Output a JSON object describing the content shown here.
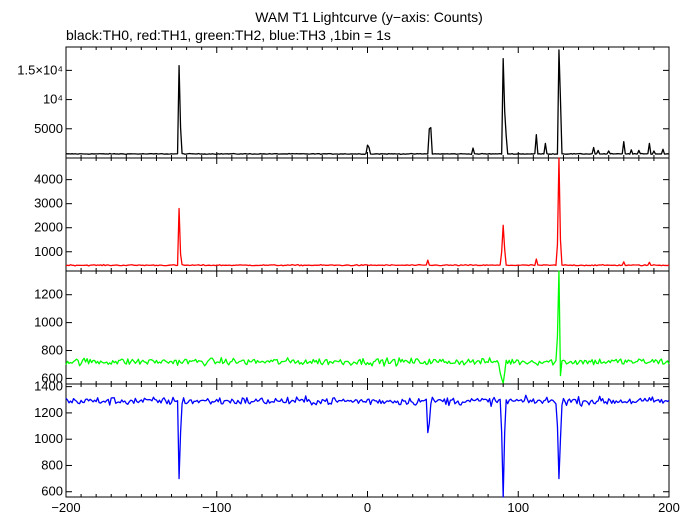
{
  "chart_data": {
    "type": "line",
    "title": "WAM T1 Lightcurve (y−axis: Counts)",
    "subtitle": "black:TH0, red:TH1, green:TH2, blue:TH3 ,1bin = 1s",
    "x_range": [
      -200,
      200
    ],
    "x_ticks": [
      -200,
      -100,
      0,
      100,
      200
    ],
    "x_tick_labels": [
      "−200",
      "−100",
      "0",
      "100",
      "200"
    ],
    "grid": false,
    "panels": [
      {
        "series": "TH0",
        "color": "#000000",
        "ylim": [
          0,
          19000
        ],
        "y_ticks": [
          5000,
          10000,
          15000
        ],
        "y_tick_labels": [
          "5000",
          "10⁴",
          "1.5×10⁴"
        ],
        "baseline": 700,
        "noise": 60,
        "features": [
          {
            "x": -125,
            "value": 15800
          },
          {
            "x": -124,
            "value": 5200
          },
          {
            "x": 0,
            "value": 2200
          },
          {
            "x": 1,
            "value": 1800
          },
          {
            "x": 41,
            "value": 5000
          },
          {
            "x": 42,
            "value": 5200
          },
          {
            "x": 70,
            "value": 1700
          },
          {
            "x": 90,
            "value": 17000
          },
          {
            "x": 91,
            "value": 8000
          },
          {
            "x": 92,
            "value": 3800
          },
          {
            "x": 112,
            "value": 4000
          },
          {
            "x": 118,
            "value": 2500
          },
          {
            "x": 127,
            "value": 18500
          },
          {
            "x": 128,
            "value": 10000
          },
          {
            "x": 150,
            "value": 1800
          },
          {
            "x": 153,
            "value": 1300
          },
          {
            "x": 160,
            "value": 1200
          },
          {
            "x": 170,
            "value": 2800
          },
          {
            "x": 175,
            "value": 1400
          },
          {
            "x": 180,
            "value": 1300
          },
          {
            "x": 187,
            "value": 2500
          },
          {
            "x": 190,
            "value": 1200
          },
          {
            "x": 196,
            "value": 1500
          }
        ]
      },
      {
        "series": "TH1",
        "color": "#ff0000",
        "ylim": [
          200,
          4900
        ],
        "y_ticks": [
          1000,
          2000,
          3000,
          4000
        ],
        "y_tick_labels": [
          "1000",
          "2000",
          "3000",
          "4000"
        ],
        "baseline": 440,
        "noise": 22,
        "features": [
          {
            "x": -125,
            "value": 2800
          },
          {
            "x": -124,
            "value": 900
          },
          {
            "x": 40,
            "value": 650
          },
          {
            "x": 89,
            "value": 1000
          },
          {
            "x": 90,
            "value": 2100
          },
          {
            "x": 91,
            "value": 1100
          },
          {
            "x": 112,
            "value": 700
          },
          {
            "x": 126,
            "value": 1300
          },
          {
            "x": 127,
            "value": 4900
          },
          {
            "x": 128,
            "value": 1500
          },
          {
            "x": 170,
            "value": 580
          },
          {
            "x": 187,
            "value": 560
          }
        ]
      },
      {
        "series": "TH2",
        "color": "#00ff00",
        "ylim": [
          560,
          1370
        ],
        "y_ticks": [
          600,
          800,
          1000,
          1200
        ],
        "y_tick_labels": [
          "600",
          "800",
          "1000",
          "1200"
        ],
        "baseline": 720,
        "noise": 25,
        "features": [
          {
            "x": 88,
            "value": 640
          },
          {
            "x": 89,
            "value": 600
          },
          {
            "x": 90,
            "value": 565
          },
          {
            "x": 91,
            "value": 640
          },
          {
            "x": 126,
            "value": 900
          },
          {
            "x": 127,
            "value": 1370
          },
          {
            "x": 128,
            "value": 620
          }
        ]
      },
      {
        "series": "TH3",
        "color": "#0000ff",
        "ylim": [
          560,
          1420
        ],
        "y_ticks": [
          600,
          800,
          1000,
          1200,
          1400
        ],
        "y_tick_labels": [
          "600",
          "800",
          "1000",
          "1200",
          "1400"
        ],
        "baseline": 1290,
        "noise": 30,
        "features": [
          {
            "x": -125,
            "value": 700
          },
          {
            "x": -124,
            "value": 1050
          },
          {
            "x": 40,
            "value": 1050
          },
          {
            "x": 41,
            "value": 1120
          },
          {
            "x": 89,
            "value": 1050
          },
          {
            "x": 90,
            "value": 560
          },
          {
            "x": 91,
            "value": 1050
          },
          {
            "x": 126,
            "value": 1100
          },
          {
            "x": 127,
            "value": 700
          },
          {
            "x": 128,
            "value": 1000
          }
        ]
      }
    ]
  }
}
